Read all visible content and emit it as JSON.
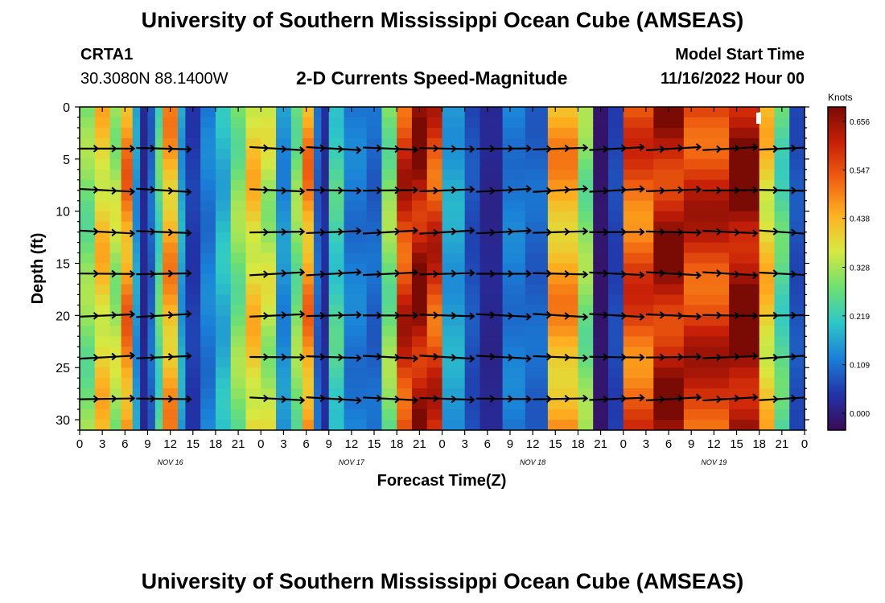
{
  "header": {
    "title": "University of Southern Mississippi Ocean Cube (AMSEAS)",
    "station": "CRTA1",
    "coords": "30.3080N  88.1400W",
    "subtitle": "2-D Currents Speed-Magnitude",
    "model_start_label": "Model Start Time",
    "model_start_value": "11/16/2022 Hour 00"
  },
  "footer": {
    "title": "University of Southern Mississippi Ocean Cube (AMSEAS)"
  },
  "colorbar": {
    "unit_label": "Knots",
    "ticks": [
      0.656,
      0.547,
      0.438,
      0.328,
      0.219,
      0.109,
      0.0
    ],
    "tick_labels": [
      "0.656",
      "0.547",
      "0.438",
      "0.328",
      "0.219",
      "0.109",
      "0.000"
    ],
    "stops": [
      "#3a0a55",
      "#2233a8",
      "#1a80d8",
      "#2ec8c8",
      "#70e070",
      "#d8e840",
      "#ffb020",
      "#f06010",
      "#c82008",
      "#7a0a04"
    ]
  },
  "chart_data": {
    "type": "heatmap",
    "title": "2-D Currents Speed-Magnitude",
    "xlabel": "Forecast Time(Z)",
    "ylabel": "Depth (ft)",
    "x_tick_labels": [
      "0",
      "3",
      "6",
      "9",
      "12",
      "15",
      "18",
      "21",
      "0",
      "3",
      "6",
      "9",
      "12",
      "15",
      "18",
      "21",
      "0",
      "3",
      "6",
      "9",
      "12",
      "15",
      "18",
      "21",
      "0",
      "3",
      "6",
      "9",
      "12",
      "15",
      "18",
      "21",
      "0"
    ],
    "date_labels": [
      "NOV 16",
      "NOV 17",
      "NOV 18",
      "NOV 19"
    ],
    "y_tick_values": [
      0,
      5,
      10,
      15,
      20,
      25,
      30
    ],
    "ylim": [
      0,
      31
    ],
    "xlim_hours": [
      0,
      96
    ],
    "unit": "Knots",
    "value_range": [
      0.0,
      0.656
    ],
    "speed_bands_hours": [
      {
        "from": 0,
        "to": 2,
        "value": 0.3
      },
      {
        "from": 2,
        "to": 4,
        "value": 0.4
      },
      {
        "from": 4,
        "to": 5.5,
        "value": 0.33
      },
      {
        "from": 5.5,
        "to": 7,
        "value": 0.47
      },
      {
        "from": 7,
        "to": 8,
        "value": 0.17
      },
      {
        "from": 8,
        "to": 9,
        "value": 0.05
      },
      {
        "from": 9,
        "to": 10,
        "value": 0.12
      },
      {
        "from": 10,
        "to": 11,
        "value": 0.26
      },
      {
        "from": 11,
        "to": 13,
        "value": 0.44
      },
      {
        "from": 13,
        "to": 14,
        "value": 0.18
      },
      {
        "from": 14,
        "to": 16,
        "value": 0.08
      },
      {
        "from": 16,
        "to": 18,
        "value": 0.14
      },
      {
        "from": 18,
        "to": 20,
        "value": 0.2
      },
      {
        "from": 20,
        "to": 22,
        "value": 0.3
      },
      {
        "from": 22,
        "to": 24,
        "value": 0.4
      },
      {
        "from": 24,
        "to": 26,
        "value": 0.34
      },
      {
        "from": 26,
        "to": 28,
        "value": 0.16
      },
      {
        "from": 28,
        "to": 29.5,
        "value": 0.3
      },
      {
        "from": 29.5,
        "to": 31,
        "value": 0.46
      },
      {
        "from": 31,
        "to": 32,
        "value": 0.12
      },
      {
        "from": 32,
        "to": 33,
        "value": 0.06
      },
      {
        "from": 33,
        "to": 35,
        "value": 0.24
      },
      {
        "from": 35,
        "to": 38,
        "value": 0.14
      },
      {
        "from": 38,
        "to": 40,
        "value": 0.12
      },
      {
        "from": 40,
        "to": 42,
        "value": 0.3
      },
      {
        "from": 42,
        "to": 44,
        "value": 0.56
      },
      {
        "from": 44,
        "to": 46,
        "value": 0.62
      },
      {
        "from": 46,
        "to": 48,
        "value": 0.55
      },
      {
        "from": 48,
        "to": 51,
        "value": 0.18
      },
      {
        "from": 51,
        "to": 53,
        "value": 0.1
      },
      {
        "from": 53,
        "to": 56,
        "value": 0.05
      },
      {
        "from": 56,
        "to": 59,
        "value": 0.14
      },
      {
        "from": 59,
        "to": 62,
        "value": 0.12
      },
      {
        "from": 62,
        "to": 66,
        "value": 0.44
      },
      {
        "from": 66,
        "to": 68,
        "value": 0.3
      },
      {
        "from": 68,
        "to": 70,
        "value": 0.02
      },
      {
        "from": 70,
        "to": 72,
        "value": 0.09
      },
      {
        "from": 72,
        "to": 76,
        "value": 0.52
      },
      {
        "from": 76,
        "to": 80,
        "value": 0.6
      },
      {
        "from": 80,
        "to": 86,
        "value": 0.56
      },
      {
        "from": 86,
        "to": 90,
        "value": 0.64
      },
      {
        "from": 90,
        "to": 92,
        "value": 0.4
      },
      {
        "from": 92,
        "to": 94,
        "value": 0.26
      },
      {
        "from": 94,
        "to": 96,
        "value": 0.1
      }
    ],
    "vector_depths_ft": [
      4,
      8,
      12,
      16,
      20,
      24,
      28
    ]
  }
}
